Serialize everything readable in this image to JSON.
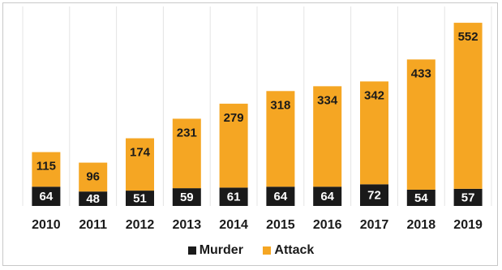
{
  "chart_data": {
    "type": "bar",
    "stacked": true,
    "categories": [
      "2010",
      "2011",
      "2012",
      "2013",
      "2014",
      "2015",
      "2016",
      "2017",
      "2018",
      "2019"
    ],
    "series": [
      {
        "name": "Murder",
        "values": [
          64,
          48,
          51,
          59,
          61,
          64,
          64,
          72,
          54,
          57
        ],
        "color": "#1a1a1a",
        "label_color": "#ffffff"
      },
      {
        "name": "Attack",
        "values": [
          115,
          96,
          174,
          231,
          279,
          318,
          334,
          342,
          433,
          552
        ],
        "color": "#f5a623",
        "label_color": "#1a1a1a"
      }
    ],
    "title": "",
    "xlabel": "",
    "ylabel": "",
    "ylim": [
      0,
      620
    ],
    "grid": "vertical",
    "legend_position": "bottom"
  }
}
